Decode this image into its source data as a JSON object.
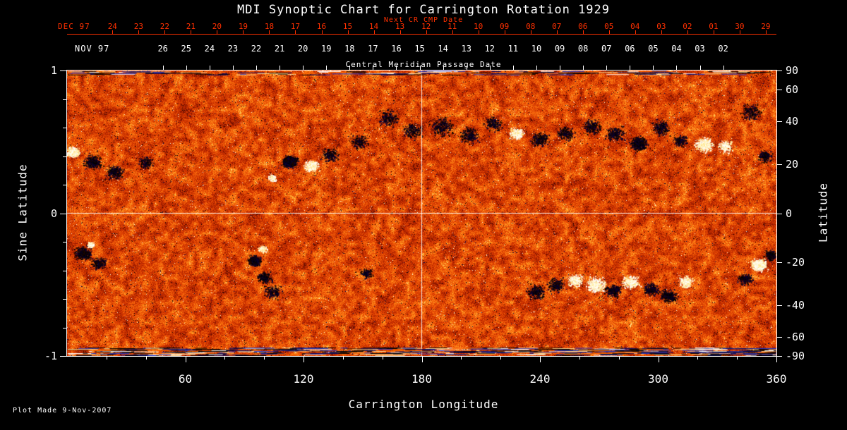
{
  "title": "MDI Synoptic Chart for Carrington Rotation 1929",
  "footer": "Plot Made  9-Nov-2007",
  "top_axis_red": {
    "prefix": "DEC 97",
    "note": "Next CR CMP Date",
    "color": "#ff3000",
    "labels": [
      "24",
      "23",
      "22",
      "21",
      "20",
      "19",
      "18",
      "17",
      "16",
      "15",
      "14",
      "13",
      "12",
      "11",
      "10",
      "09",
      "08",
      "07",
      "06",
      "05",
      "04",
      "03",
      "02",
      "01",
      "30",
      "29"
    ],
    "span": [
      0.064,
      0.985
    ]
  },
  "top_axis_white": {
    "prefix": "NOV 97",
    "axis_label": "Central Meridian Passage Date",
    "labels": [
      "26",
      "25",
      "24",
      "23",
      "22",
      "21",
      "20",
      "19",
      "18",
      "17",
      "16",
      "15",
      "14",
      "13",
      "12",
      "11",
      "10",
      "09",
      "08",
      "07",
      "06",
      "05",
      "04",
      "03",
      "02"
    ],
    "span": [
      0.135,
      0.925
    ]
  },
  "left_axis": {
    "label": "Sine Latitude",
    "ticks": [
      "1",
      "0",
      "-1"
    ],
    "values": [
      1,
      0,
      -1
    ]
  },
  "right_axis": {
    "label": "Latitude",
    "ticks": [
      "90",
      "60",
      "40",
      "20",
      "0",
      "-20",
      "-40",
      "-60",
      "-90"
    ],
    "values": [
      90,
      60,
      40,
      20,
      0,
      -20,
      -40,
      -60,
      -90
    ]
  },
  "bottom_axis": {
    "label": "Carrington Longitude",
    "ticks": [
      "60",
      "120",
      "180",
      "240",
      "300",
      "360"
    ]
  },
  "chart_data": {
    "type": "heatmap",
    "title": "MDI Synoptic Chart for Carrington Rotation 1929",
    "description": "Solar photospheric radial magnetic field synoptic map: speckled orange-red quiet-sun background with dark (negative polarity) and bright white (positive polarity) active regions, plus streaky polar rows.",
    "x": {
      "label": "Carrington Longitude",
      "range": [
        0,
        360
      ],
      "major_ticks": [
        60,
        120,
        180,
        240,
        300,
        360
      ],
      "minor_tick_step": 20
    },
    "y": {
      "label": "Sine Latitude",
      "range": [
        -1,
        1
      ],
      "ticks": [
        1,
        0,
        -1
      ]
    },
    "y_right": {
      "label": "Latitude",
      "ticks": [
        90,
        60,
        40,
        20,
        0,
        -20,
        -40,
        -60,
        -90
      ]
    },
    "gridlines": {
      "vertical_at_longitude": 180,
      "horizontal_at_sine_latitude": 0,
      "color": "#ffffff"
    },
    "legend": "none",
    "noise_seed": 1929,
    "palette": [
      {
        "t": 0.0,
        "c": "#140000"
      },
      {
        "t": 0.06,
        "c": "#5a0a00"
      },
      {
        "t": 0.18,
        "c": "#9c1a00"
      },
      {
        "t": 0.4,
        "c": "#d23400"
      },
      {
        "t": 0.62,
        "c": "#f25a08"
      },
      {
        "t": 0.8,
        "c": "#ff8818"
      },
      {
        "t": 0.92,
        "c": "#ffc040"
      },
      {
        "t": 1.0,
        "c": "#fff6c8"
      }
    ],
    "speckle_colors": {
      "navy": "#000a50",
      "dark": "#150000",
      "bright": "#fff6d0"
    },
    "polarity_colors": {
      "negative": [
        "#000000",
        "#05001f",
        "#0b0033",
        "#1d0600"
      ],
      "positive": [
        "#ffffff",
        "#fff3c0",
        "#ffe382",
        "#fffef0"
      ]
    },
    "polar_streaks": {
      "top_rows": 6,
      "bottom_rows": 11,
      "colors": [
        "#000000",
        "#000000",
        "#0a0a66",
        "#2236c4",
        "#ff6a00",
        "#ffd890",
        "#ffffff"
      ]
    },
    "active_regions": [
      {
        "lon": 3,
        "sin_lat": 0.43,
        "polarity": "positive",
        "spread": 8,
        "dots": 400,
        "core": 5
      },
      {
        "lon": 13,
        "sin_lat": 0.36,
        "polarity": "negative",
        "spread": 10,
        "dots": 400,
        "core": 0
      },
      {
        "lon": 24,
        "sin_lat": 0.29,
        "polarity": "negative",
        "spread": 11,
        "dots": 350,
        "core": 0
      },
      {
        "lon": 40,
        "sin_lat": 0.36,
        "polarity": "negative",
        "spread": 9,
        "dots": 200,
        "core": 0
      },
      {
        "lon": 104,
        "sin_lat": 0.25,
        "polarity": "positive",
        "spread": 5,
        "dots": 150,
        "core": 0
      },
      {
        "lon": 113,
        "sin_lat": 0.36,
        "polarity": "negative",
        "spread": 9,
        "dots": 700,
        "core": 10
      },
      {
        "lon": 124,
        "sin_lat": 0.33,
        "polarity": "positive",
        "spread": 8,
        "dots": 550,
        "core": 6
      },
      {
        "lon": 133,
        "sin_lat": 0.41,
        "polarity": "negative",
        "spread": 10,
        "dots": 300,
        "core": 0
      },
      {
        "lon": 148,
        "sin_lat": 0.5,
        "polarity": "negative",
        "spread": 11,
        "dots": 220,
        "core": 0
      },
      {
        "lon": 163,
        "sin_lat": 0.67,
        "polarity": "negative",
        "spread": 13,
        "dots": 280,
        "core": 0
      },
      {
        "lon": 175,
        "sin_lat": 0.58,
        "polarity": "negative",
        "spread": 12,
        "dots": 300,
        "core": 0
      },
      {
        "lon": 190,
        "sin_lat": 0.61,
        "polarity": "negative",
        "spread": 15,
        "dots": 380,
        "core": 0
      },
      {
        "lon": 204,
        "sin_lat": 0.55,
        "polarity": "negative",
        "spread": 12,
        "dots": 300,
        "core": 0
      },
      {
        "lon": 216,
        "sin_lat": 0.63,
        "polarity": "negative",
        "spread": 12,
        "dots": 260,
        "core": 0
      },
      {
        "lon": 228,
        "sin_lat": 0.56,
        "polarity": "positive",
        "spread": 9,
        "dots": 350,
        "core": 0
      },
      {
        "lon": 240,
        "sin_lat": 0.52,
        "polarity": "negative",
        "spread": 11,
        "dots": 330,
        "core": 0
      },
      {
        "lon": 253,
        "sin_lat": 0.56,
        "polarity": "negative",
        "spread": 10,
        "dots": 260,
        "core": 0
      },
      {
        "lon": 266,
        "sin_lat": 0.61,
        "polarity": "negative",
        "spread": 12,
        "dots": 300,
        "core": 0
      },
      {
        "lon": 278,
        "sin_lat": 0.56,
        "polarity": "negative",
        "spread": 11,
        "dots": 330,
        "core": 0
      },
      {
        "lon": 290,
        "sin_lat": 0.49,
        "polarity": "negative",
        "spread": 10,
        "dots": 600,
        "core": 7
      },
      {
        "lon": 301,
        "sin_lat": 0.6,
        "polarity": "negative",
        "spread": 11,
        "dots": 280,
        "core": 0
      },
      {
        "lon": 311,
        "sin_lat": 0.51,
        "polarity": "negative",
        "spread": 9,
        "dots": 240,
        "core": 0
      },
      {
        "lon": 323,
        "sin_lat": 0.48,
        "polarity": "positive",
        "spread": 11,
        "dots": 520,
        "core": 5
      },
      {
        "lon": 334,
        "sin_lat": 0.47,
        "polarity": "positive",
        "spread": 9,
        "dots": 300,
        "core": 0
      },
      {
        "lon": 347,
        "sin_lat": 0.71,
        "polarity": "negative",
        "spread": 12,
        "dots": 260,
        "core": 0
      },
      {
        "lon": 354,
        "sin_lat": 0.4,
        "polarity": "negative",
        "spread": 9,
        "dots": 240,
        "core": 0
      },
      {
        "lon": 8,
        "sin_lat": -0.28,
        "polarity": "negative",
        "spread": 10,
        "dots": 500,
        "core": 5
      },
      {
        "lon": 16,
        "sin_lat": -0.35,
        "polarity": "negative",
        "spread": 9,
        "dots": 300,
        "core": 0
      },
      {
        "lon": 12,
        "sin_lat": -0.22,
        "polarity": "positive",
        "spread": 5,
        "dots": 120,
        "core": 0
      },
      {
        "lon": 95,
        "sin_lat": -0.33,
        "polarity": "negative",
        "spread": 8,
        "dots": 500,
        "core": 7
      },
      {
        "lon": 100,
        "sin_lat": -0.45,
        "polarity": "negative",
        "spread": 9,
        "dots": 300,
        "core": 0
      },
      {
        "lon": 104,
        "sin_lat": -0.55,
        "polarity": "negative",
        "spread": 10,
        "dots": 240,
        "core": 0
      },
      {
        "lon": 99,
        "sin_lat": -0.25,
        "polarity": "positive",
        "spread": 5,
        "dots": 160,
        "core": 0
      },
      {
        "lon": 152,
        "sin_lat": -0.42,
        "polarity": "negative",
        "spread": 8,
        "dots": 150,
        "core": 0
      },
      {
        "lon": 238,
        "sin_lat": -0.55,
        "polarity": "negative",
        "spread": 11,
        "dots": 330,
        "core": 0
      },
      {
        "lon": 248,
        "sin_lat": -0.5,
        "polarity": "negative",
        "spread": 10,
        "dots": 300,
        "core": 0
      },
      {
        "lon": 258,
        "sin_lat": -0.47,
        "polarity": "positive",
        "spread": 10,
        "dots": 330,
        "core": 0
      },
      {
        "lon": 268,
        "sin_lat": -0.5,
        "polarity": "positive",
        "spread": 12,
        "dots": 520,
        "core": 4
      },
      {
        "lon": 277,
        "sin_lat": -0.54,
        "polarity": "negative",
        "spread": 10,
        "dots": 330,
        "core": 0
      },
      {
        "lon": 286,
        "sin_lat": -0.48,
        "polarity": "positive",
        "spread": 10,
        "dots": 400,
        "core": 4
      },
      {
        "lon": 296,
        "sin_lat": -0.53,
        "polarity": "negative",
        "spread": 10,
        "dots": 300,
        "core": 0
      },
      {
        "lon": 305,
        "sin_lat": -0.58,
        "polarity": "negative",
        "spread": 10,
        "dots": 430,
        "core": 5
      },
      {
        "lon": 314,
        "sin_lat": -0.48,
        "polarity": "positive",
        "spread": 9,
        "dots": 300,
        "core": 0
      },
      {
        "lon": 344,
        "sin_lat": -0.46,
        "polarity": "negative",
        "spread": 9,
        "dots": 240,
        "core": 0
      },
      {
        "lon": 351,
        "sin_lat": -0.36,
        "polarity": "positive",
        "spread": 9,
        "dots": 650,
        "core": 8
      },
      {
        "lon": 357,
        "sin_lat": -0.29,
        "polarity": "negative",
        "spread": 8,
        "dots": 300,
        "core": 0
      }
    ]
  }
}
